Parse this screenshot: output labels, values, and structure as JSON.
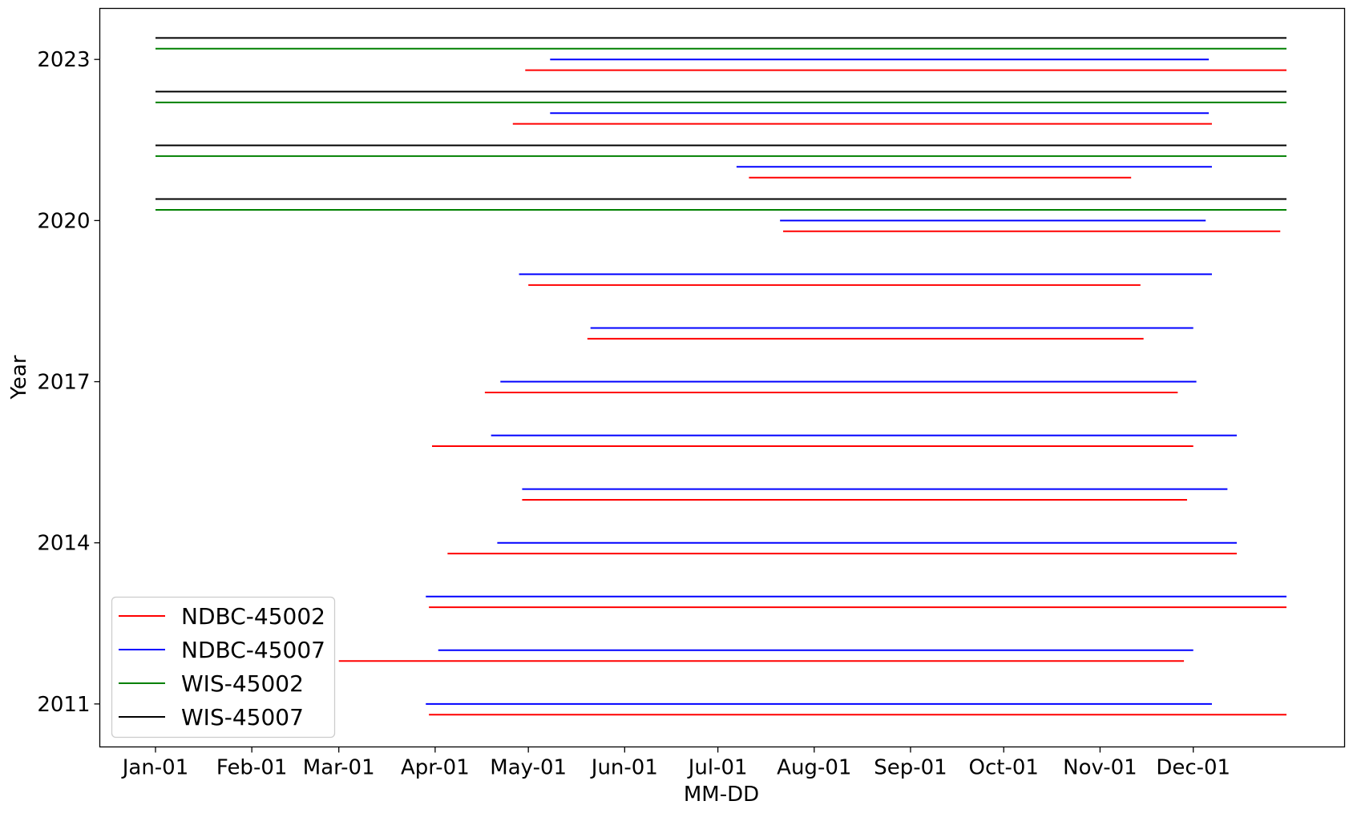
{
  "chart_data": {
    "type": "line",
    "title": "",
    "xlabel": "MM-DD",
    "ylabel": "Year",
    "x_axis": {
      "type": "date",
      "range": [
        "01-01",
        "12-31"
      ],
      "tick_labels": [
        "Jan-01",
        "Feb-01",
        "Mar-01",
        "Apr-01",
        "May-01",
        "Jun-01",
        "Jul-01",
        "Aug-01",
        "Sep-01",
        "Oct-01",
        "Nov-01",
        "Dec-01"
      ],
      "tick_values": [
        "01-01",
        "02-01",
        "03-01",
        "04-01",
        "05-01",
        "06-01",
        "07-01",
        "08-01",
        "09-01",
        "10-01",
        "11-01",
        "12-01"
      ]
    },
    "y_axis": {
      "range": [
        2010.2,
        2023.95
      ],
      "ticks": [
        2011,
        2014,
        2017,
        2020,
        2023
      ],
      "tick_labels": [
        "2011",
        "2014",
        "2017",
        "2020",
        "2023"
      ]
    },
    "grid": false,
    "legend": {
      "placement": "lower-left",
      "entries": [
        "NDBC-45002",
        "NDBC-45007",
        "WIS-45002",
        "WIS-45007"
      ]
    },
    "colors": {
      "NDBC-45002": "#ff0000",
      "NDBC-45007": "#0000ff",
      "WIS-45002": "#008000",
      "WIS-45007": "#000000"
    },
    "series": [
      {
        "name": "NDBC-45002",
        "color": "#ff0000",
        "segments": [
          {
            "y": 2010.8,
            "start": "03-30",
            "end": "12-31"
          },
          {
            "y": 2011.8,
            "start": "03-01",
            "end": "11-28"
          },
          {
            "y": 2012.8,
            "start": "03-30",
            "end": "12-31"
          },
          {
            "y": 2013.8,
            "start": "04-05",
            "end": "12-15"
          },
          {
            "y": 2014.8,
            "start": "04-29",
            "end": "11-29"
          },
          {
            "y": 2015.8,
            "start": "03-31",
            "end": "12-01"
          },
          {
            "y": 2016.8,
            "start": "04-17",
            "end": "11-26"
          },
          {
            "y": 2017.8,
            "start": "05-20",
            "end": "11-15"
          },
          {
            "y": 2018.8,
            "start": "05-01",
            "end": "11-14"
          },
          {
            "y": 2019.8,
            "start": "07-22",
            "end": "12-29"
          },
          {
            "y": 2020.8,
            "start": "07-11",
            "end": "11-11"
          },
          {
            "y": 2021.8,
            "start": "04-26",
            "end": "12-07"
          },
          {
            "y": 2022.8,
            "start": "04-30",
            "end": "12-31"
          }
        ]
      },
      {
        "name": "NDBC-45007",
        "color": "#0000ff",
        "segments": [
          {
            "y": 2011.0,
            "start": "03-29",
            "end": "12-07"
          },
          {
            "y": 2012.0,
            "start": "04-02",
            "end": "12-01"
          },
          {
            "y": 2013.0,
            "start": "03-29",
            "end": "12-31"
          },
          {
            "y": 2014.0,
            "start": "04-21",
            "end": "12-15"
          },
          {
            "y": 2015.0,
            "start": "04-29",
            "end": "12-12"
          },
          {
            "y": 2016.0,
            "start": "04-19",
            "end": "12-15"
          },
          {
            "y": 2017.0,
            "start": "04-22",
            "end": "12-02"
          },
          {
            "y": 2018.0,
            "start": "05-21",
            "end": "12-01"
          },
          {
            "y": 2019.0,
            "start": "04-28",
            "end": "12-07"
          },
          {
            "y": 2020.0,
            "start": "07-21",
            "end": "12-05"
          },
          {
            "y": 2021.0,
            "start": "07-07",
            "end": "12-07"
          },
          {
            "y": 2022.0,
            "start": "05-08",
            "end": "12-06"
          },
          {
            "y": 2023.0,
            "start": "05-08",
            "end": "12-06"
          }
        ]
      },
      {
        "name": "WIS-45002",
        "color": "#008000",
        "segments": [
          {
            "y": 2020.2,
            "start": "01-01",
            "end": "12-31"
          },
          {
            "y": 2021.2,
            "start": "01-01",
            "end": "12-31"
          },
          {
            "y": 2022.2,
            "start": "01-01",
            "end": "12-31"
          },
          {
            "y": 2023.2,
            "start": "01-01",
            "end": "12-31"
          }
        ]
      },
      {
        "name": "WIS-45007",
        "color": "#000000",
        "segments": [
          {
            "y": 2020.4,
            "start": "01-01",
            "end": "12-31"
          },
          {
            "y": 2021.4,
            "start": "01-01",
            "end": "12-31"
          },
          {
            "y": 2022.4,
            "start": "01-01",
            "end": "12-31"
          },
          {
            "y": 2023.4,
            "start": "01-01",
            "end": "12-31"
          }
        ]
      }
    ]
  }
}
